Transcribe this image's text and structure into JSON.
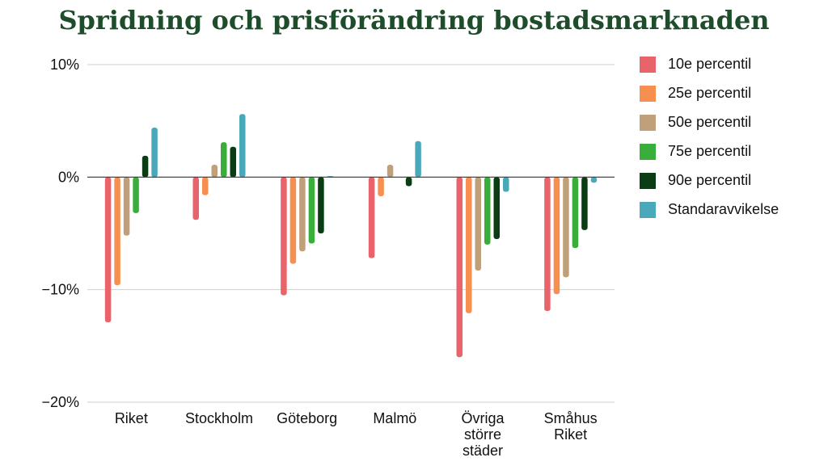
{
  "chart_data": {
    "type": "bar",
    "title": "Spridning och prisförändring bostadsmarknaden",
    "xlabel": "",
    "ylabel": "",
    "ylim": [
      -20,
      10
    ],
    "yticks": [
      {
        "value": 10,
        "label": "10%"
      },
      {
        "value": 0,
        "label": "0%"
      },
      {
        "value": -10,
        "label": "−10%"
      },
      {
        "value": -20,
        "label": "−20%"
      }
    ],
    "grid": true,
    "legend_position": "right",
    "categories": [
      [
        "Riket"
      ],
      [
        "Stockholm"
      ],
      [
        "Göteborg"
      ],
      [
        "Malmö"
      ],
      [
        "Övriga",
        "större",
        "städer"
      ],
      [
        "Småhus",
        "Riket"
      ]
    ],
    "series": [
      {
        "name": "10e percentil",
        "color": "#e8636a",
        "values": [
          -12.9,
          -3.8,
          -10.5,
          -7.2,
          -16.0,
          -11.9
        ]
      },
      {
        "name": "25e percentil",
        "color": "#f68f4f",
        "values": [
          -9.6,
          -1.6,
          -7.7,
          -1.7,
          -12.1,
          -10.4
        ]
      },
      {
        "name": "50e percentil",
        "color": "#bfa07a",
        "values": [
          -5.2,
          1.1,
          -6.6,
          1.1,
          -8.3,
          -8.9
        ]
      },
      {
        "name": "75e percentil",
        "color": "#3aae3a",
        "values": [
          -3.2,
          3.1,
          -5.9,
          0.0,
          -6.0,
          -6.3
        ]
      },
      {
        "name": "90e percentil",
        "color": "#0b3d14",
        "values": [
          1.9,
          2.7,
          -5.0,
          -0.8,
          -5.5,
          -4.7
        ]
      },
      {
        "name": "Standaravvikelse",
        "color": "#4aa8bb",
        "values": [
          4.4,
          5.6,
          0.1,
          3.2,
          -1.3,
          -0.5
        ]
      }
    ]
  }
}
